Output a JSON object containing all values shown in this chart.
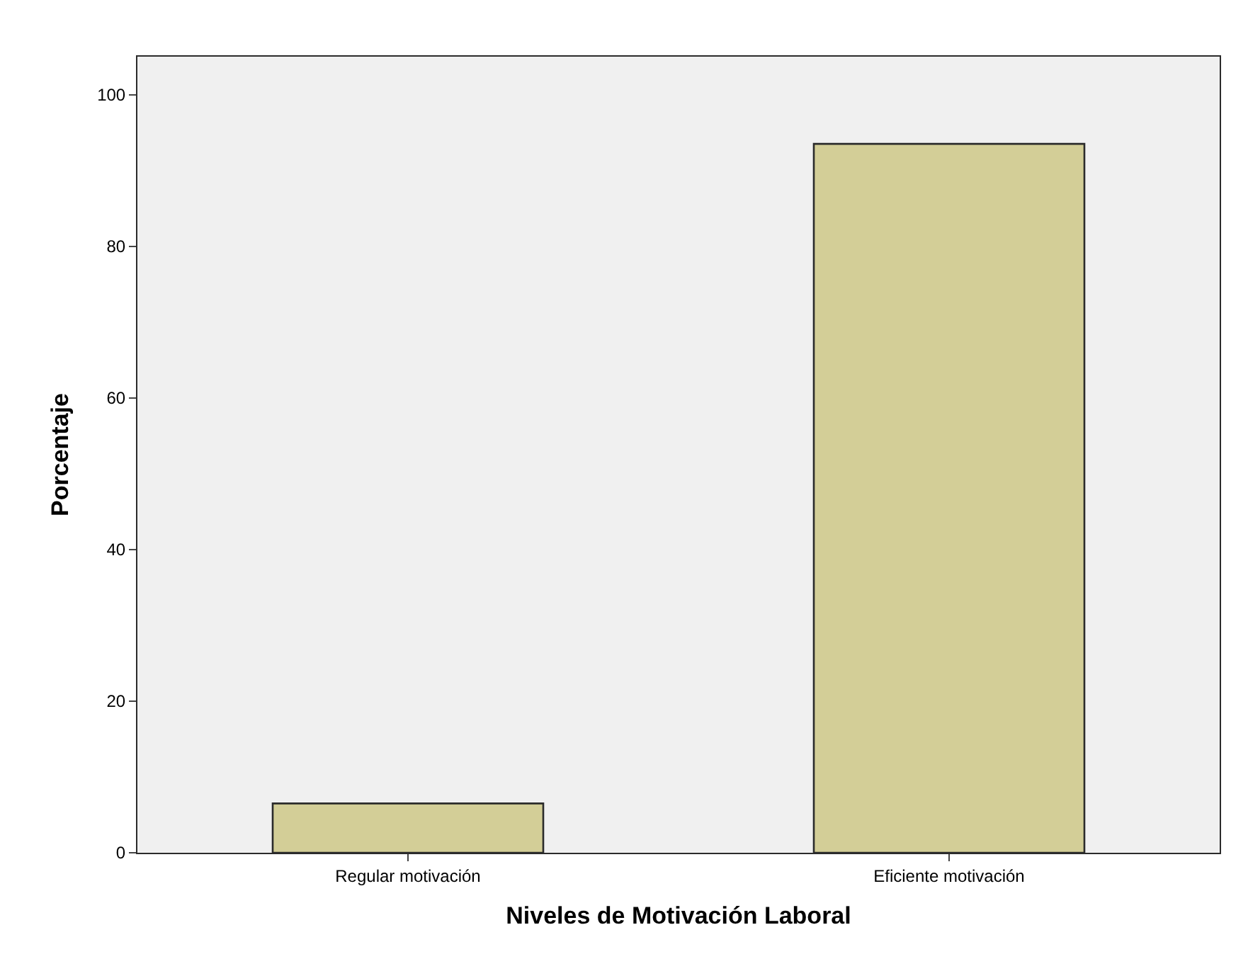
{
  "chart_data": {
    "type": "bar",
    "xlabel": "Niveles de Motivación Laboral",
    "ylabel": "Porcentaje",
    "categories": [
      "Regular motivación",
      "Eficiente motivación"
    ],
    "values": [
      6.5,
      93.5
    ],
    "color": "#d3ce97",
    "ylim": [
      0,
      105
    ],
    "yticks": [
      0,
      20,
      40,
      60,
      80,
      100
    ],
    "grid": false,
    "legend": false
  }
}
